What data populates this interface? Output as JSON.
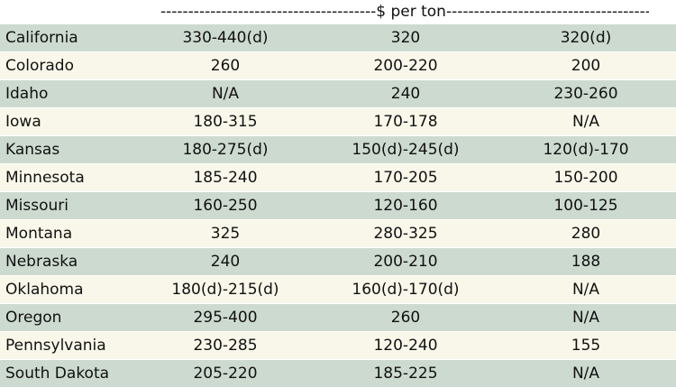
{
  "header": {
    "unit_label": "---------------------------------------$ per ton---------------------------------------"
  },
  "colors": {
    "shaded_row": "#cddad0",
    "plain_row": "#f9f7ea"
  },
  "rows": [
    {
      "state": "California",
      "col1": "330-440(d)",
      "col2": "320",
      "col3": "320(d)"
    },
    {
      "state": "Colorado",
      "col1": "260",
      "col2": "200-220",
      "col3": "200"
    },
    {
      "state": "Idaho",
      "col1": "N/A",
      "col2": "240",
      "col3": "230-260"
    },
    {
      "state": "Iowa",
      "col1": "180-315",
      "col2": "170-178",
      "col3": "N/A"
    },
    {
      "state": "Kansas",
      "col1": "180-275(d)",
      "col2": "150(d)-245(d)",
      "col3": "120(d)-170"
    },
    {
      "state": "Minnesota",
      "col1": "185-240",
      "col2": "170-205",
      "col3": "150-200"
    },
    {
      "state": "Missouri",
      "col1": "160-250",
      "col2": "120-160",
      "col3": "100-125"
    },
    {
      "state": "Montana",
      "col1": "325",
      "col2": "280-325",
      "col3": "280"
    },
    {
      "state": "Nebraska",
      "col1": "240",
      "col2": "200-210",
      "col3": "188"
    },
    {
      "state": "Oklahoma",
      "col1": "180(d)-215(d)",
      "col2": "160(d)-170(d)",
      "col3": "N/A"
    },
    {
      "state": "Oregon",
      "col1": "295-400",
      "col2": "260",
      "col3": "N/A"
    },
    {
      "state": "Pennsylvania",
      "col1": "230-285",
      "col2": "120-240",
      "col3": "155"
    },
    {
      "state": "South Dakota",
      "col1": "205-220",
      "col2": "185-225",
      "col3": "N/A"
    }
  ]
}
